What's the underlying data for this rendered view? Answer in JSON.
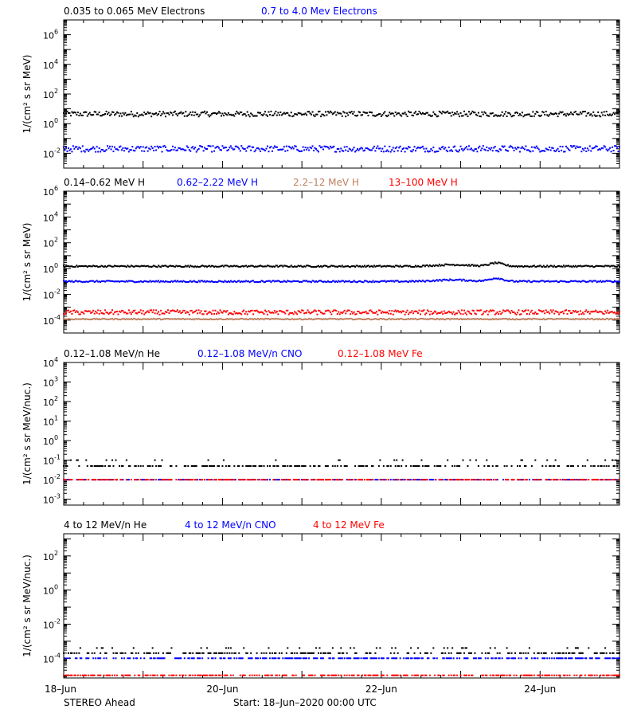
{
  "chart_data": [
    {
      "type": "scatter",
      "ylabel": "1/(cm² s sr MeV)",
      "yscale": "log",
      "ylim": [
        0.001,
        10000000
      ],
      "y_ticks": [
        {
          "value": 0.01,
          "label": "10",
          "exp": "-2"
        },
        {
          "value": 1,
          "label": "10",
          "exp": "0"
        },
        {
          "value": 100,
          "label": "10",
          "exp": "2"
        },
        {
          "value": 10000,
          "label": "10",
          "exp": "4"
        },
        {
          "value": 1000000,
          "label": "10",
          "exp": "6"
        }
      ],
      "series": [
        {
          "name": "0.035 to 0.065 MeV Electrons",
          "color": "#000000",
          "level": 4.5,
          "scatter": 1.5
        },
        {
          "name": "0.7 to 4.0 Mev Electrons",
          "color": "#0000ff",
          "level": 0.02,
          "scatter": 1.6
        }
      ]
    },
    {
      "type": "scatter",
      "ylabel": "1/(cm² s sr MeV)",
      "yscale": "log",
      "ylim": [
        1e-05,
        1000000
      ],
      "y_ticks": [
        {
          "value": 0.0001,
          "label": "10",
          "exp": "-4"
        },
        {
          "value": 0.01,
          "label": "10",
          "exp": "-2"
        },
        {
          "value": 1,
          "label": "10",
          "exp": "0"
        },
        {
          "value": 100,
          "label": "10",
          "exp": "2"
        },
        {
          "value": 10000,
          "label": "10",
          "exp": "4"
        },
        {
          "value": 1000000,
          "label": "10",
          "exp": "6"
        }
      ],
      "series": [
        {
          "name": "0.14–0.62 MeV H",
          "color": "#000000",
          "level": 1.5,
          "scatter": 1.15
        },
        {
          "name": "0.62–2.22 MeV H",
          "color": "#0000ff",
          "level": 0.1,
          "scatter": 1.15
        },
        {
          "name": "2.2–12 MeV H",
          "color": "#c08060",
          "level": 0.00012,
          "scatter": 1.1
        },
        {
          "name": "13–100 MeV H",
          "color": "#ff0000",
          "level": 0.0004,
          "scatter": 1.5
        }
      ]
    },
    {
      "type": "scatter",
      "ylabel": "1/(cm² s sr MeV/nuc.)",
      "yscale": "log",
      "ylim": [
        0.0005,
        10000
      ],
      "y_ticks": [
        {
          "value": 0.001,
          "label": "10",
          "exp": "-3"
        },
        {
          "value": 0.01,
          "label": "10",
          "exp": "-2"
        },
        {
          "value": 0.1,
          "label": "10",
          "exp": "-1"
        },
        {
          "value": 1,
          "label": "10",
          "exp": "0"
        },
        {
          "value": 10,
          "label": "10",
          "exp": "1"
        },
        {
          "value": 100,
          "label": "10",
          "exp": "2"
        },
        {
          "value": 1000,
          "label": "10",
          "exp": "3"
        },
        {
          "value": 10000,
          "label": "10",
          "exp": "4"
        }
      ],
      "series": [
        {
          "name": "0.12–1.08 MeV/n He",
          "color": "#000000",
          "level": 0.05,
          "scatter": 1.0
        },
        {
          "name": "0.12–1.08 MeV/n CNO",
          "color": "#0000ff",
          "level": 0.01,
          "scatter": 1.0
        },
        {
          "name": "0.12–1.08 MeV Fe",
          "color": "#ff0000",
          "level": 0.01,
          "scatter": 1.0
        }
      ]
    },
    {
      "type": "scatter",
      "ylabel": "1/(cm² s sr MeV/nuc.)",
      "yscale": "log",
      "ylim": [
        7e-06,
        2000
      ],
      "y_ticks": [
        {
          "value": 0.0001,
          "label": "10",
          "exp": "-4"
        },
        {
          "value": 0.01,
          "label": "10",
          "exp": "-2"
        },
        {
          "value": 1,
          "label": "10",
          "exp": "0"
        },
        {
          "value": 100,
          "label": "10",
          "exp": "2"
        }
      ],
      "series": [
        {
          "name": "4 to 12 MeV/n He",
          "color": "#000000",
          "level": 0.0002,
          "scatter": 1.0
        },
        {
          "name": "4 to 12 MeV/n CNO",
          "color": "#0000ff",
          "level": 0.0001,
          "scatter": 1.0
        },
        {
          "name": "4 to 12 MeV Fe",
          "color": "#ff0000",
          "level": 1e-05,
          "scatter": 1.0
        }
      ]
    }
  ],
  "x_axis": {
    "range_days": [
      0,
      7
    ],
    "ticks": [
      {
        "value": 0,
        "label": "18–Jun"
      },
      {
        "value": 2,
        "label": "20–Jun"
      },
      {
        "value": 4,
        "label": "22–Jun"
      },
      {
        "value": 6,
        "label": "24–Jun"
      }
    ]
  },
  "footer": {
    "spacecraft": "STEREO Ahead",
    "start": "Start: 18–Jun–2020 00:00 UTC"
  }
}
